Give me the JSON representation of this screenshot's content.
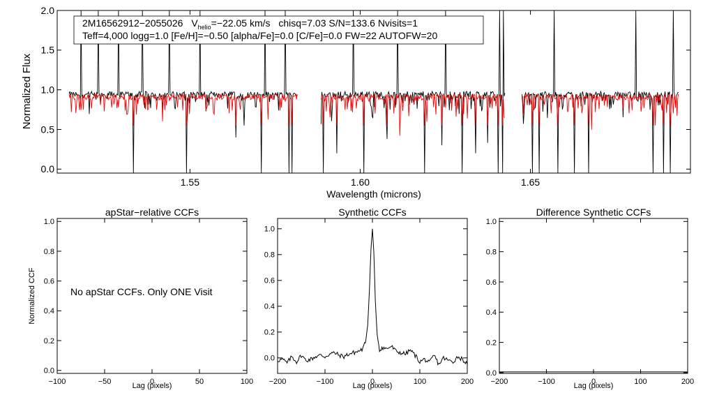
{
  "chart_data": [
    {
      "type": "line",
      "panel": "spectrum",
      "title": "",
      "xlabel": "Wavelength (microns)",
      "ylabel": "Normalized Flux",
      "xlim": [
        1.511,
        1.697
      ],
      "ylim": [
        -0.05,
        2.0
      ],
      "xticks": [
        1.55,
        1.6,
        1.65
      ],
      "xtick_labels": [
        "1.55",
        "1.60",
        "1.65"
      ],
      "yticks": [
        0.0,
        0.5,
        1.0,
        1.5,
        2.0
      ],
      "ytick_labels": [
        "0.0",
        "0.5",
        "1.0",
        "1.5",
        "2.0"
      ],
      "grid": false,
      "legend": {
        "placement": "top-left",
        "line1": {
          "star": "2M16562912−2055026",
          "vhelio_prefix": "V",
          "vhelio_sub": "helio",
          "vhelio_value": "=−22.05 km/s",
          "rest": "chisq=7.03  S/N=133.6  Nvisits=1"
        },
        "line2": "Teff=4,000 logg=1.0 [Fe/H]=−0.50 [alpha/Fe]=0.0 [C/Fe]=0.0 FW=22 AUTOFW=20"
      },
      "segments": [
        [
          1.5145,
          1.5815
        ],
        [
          1.5885,
          1.6425
        ],
        [
          1.6475,
          1.6935
        ]
      ],
      "baseline_observed": 0.94,
      "baseline_model": 0.91,
      "spikes_up": [
        1.518,
        1.523,
        1.529,
        1.536,
        1.544,
        1.553,
        1.572,
        1.578,
        1.598,
        1.611,
        1.625,
        1.641,
        1.642,
        1.657,
        1.681,
        1.692
      ],
      "dips": [
        {
          "x": 1.5335,
          "y": -0.05
        },
        {
          "x": 1.549,
          "y": -0.05
        },
        {
          "x": 1.5635,
          "y": 0.4
        },
        {
          "x": 1.571,
          "y": -0.05
        },
        {
          "x": 1.579,
          "y": -0.05
        },
        {
          "x": 1.58,
          "y": -0.05
        },
        {
          "x": 1.5892,
          "y": -0.05
        },
        {
          "x": 1.5932,
          "y": 0.2
        },
        {
          "x": 1.601,
          "y": -0.05
        },
        {
          "x": 1.608,
          "y": 0.38
        },
        {
          "x": 1.619,
          "y": -0.05
        },
        {
          "x": 1.624,
          "y": 0.3
        },
        {
          "x": 1.63,
          "y": -0.05
        },
        {
          "x": 1.634,
          "y": 0.2
        },
        {
          "x": 1.6375,
          "y": 0.33
        },
        {
          "x": 1.6405,
          "y": -0.05
        },
        {
          "x": 1.6418,
          "y": -0.05
        },
        {
          "x": 1.645,
          "y": 0.63
        },
        {
          "x": 1.6505,
          "y": -0.05
        },
        {
          "x": 1.6525,
          "y": -0.05
        },
        {
          "x": 1.658,
          "y": -0.05
        },
        {
          "x": 1.663,
          "y": -0.05
        },
        {
          "x": 1.667,
          "y": -0.05
        },
        {
          "x": 1.686,
          "y": -0.05
        },
        {
          "x": 1.689,
          "y": -0.05
        },
        {
          "x": 1.691,
          "y": -0.05
        }
      ],
      "colors": {
        "observed": "#000000",
        "model": "#ff0000"
      }
    },
    {
      "type": "line",
      "panel": "apstar",
      "title": "apStar−relative CCFs",
      "xlabel": "Lag (pixels)",
      "ylabel": "Normalized CCF",
      "xlim": [
        -100,
        100
      ],
      "ylim": [
        -0.02,
        1.02
      ],
      "xticks": [
        -100,
        -50,
        0,
        50,
        100
      ],
      "xtick_labels": [
        "−100",
        "−50",
        "0",
        "50",
        "100"
      ],
      "yticks": [
        0.0,
        0.2,
        0.4,
        0.6,
        0.8,
        1.0
      ],
      "ytick_labels": [
        "0.0",
        "0.2",
        "0.4",
        "0.6",
        "0.8",
        "1.0"
      ],
      "annotation": "No apStar CCFs.  Only ONE Visit",
      "series": []
    },
    {
      "type": "line",
      "panel": "synthetic",
      "title": "Synthetic CCFs",
      "xlabel": "Lag (pixels)",
      "ylabel": "",
      "xlim": [
        -200,
        200
      ],
      "ylim": [
        -0.12,
        1.08
      ],
      "xticks": [
        -200,
        -100,
        0,
        100,
        200
      ],
      "xtick_labels": [
        "−200",
        "−100",
        "0",
        "100",
        "200"
      ],
      "yticks": [
        0.0,
        0.2,
        0.4,
        0.6,
        0.8,
        1.0
      ],
      "ytick_labels": [
        "0.0",
        "0.2",
        "0.4",
        "0.6",
        "0.8",
        "1.0"
      ],
      "series": [
        {
          "x": [
            -200,
            -190,
            -180,
            -170,
            -160,
            -150,
            -140,
            -130,
            -120,
            -110,
            -100,
            -90,
            -80,
            -70,
            -60,
            -50,
            -40,
            -30,
            -20,
            -15,
            -10,
            -6,
            -3,
            0,
            3,
            6,
            10,
            15,
            20,
            30,
            40,
            50,
            60,
            70,
            80,
            90,
            100,
            110,
            120,
            130,
            140,
            150,
            160,
            170,
            180,
            190,
            200
          ],
          "y": [
            -0.02,
            -0.01,
            -0.04,
            0.01,
            -0.03,
            0.02,
            -0.02,
            -0.01,
            0.01,
            0.02,
            0.01,
            0.03,
            0.04,
            0.02,
            0.01,
            0.03,
            0.04,
            0.05,
            0.07,
            0.12,
            0.25,
            0.55,
            0.85,
            1.0,
            0.82,
            0.45,
            0.18,
            0.06,
            0.08,
            0.07,
            0.09,
            0.05,
            0.04,
            0.03,
            0.06,
            0.02,
            -0.03,
            -0.01,
            -0.04,
            0.02,
            -0.05,
            0.0,
            -0.02,
            -0.03,
            0.01,
            -0.01,
            -0.05
          ]
        }
      ]
    },
    {
      "type": "line",
      "panel": "difference",
      "title": "Difference Synthetic CCFs",
      "xlabel": "Lag (pixels)",
      "ylabel": "",
      "xlim": [
        -200,
        200
      ],
      "ylim": [
        -0.005,
        1.02
      ],
      "xticks": [
        -200,
        -100,
        0,
        100,
        200
      ],
      "xtick_labels": [
        "−200",
        "−100",
        "0",
        "100",
        "200"
      ],
      "yticks": [
        0.0,
        0.2,
        0.4,
        0.6,
        0.8,
        1.0
      ],
      "ytick_labels": [
        "0.0",
        "0.2",
        "0.4",
        "0.6",
        "0.8",
        "1.0"
      ],
      "series": [
        {
          "x": [
            -200,
            200
          ],
          "y": [
            0.0,
            0.0
          ]
        }
      ]
    }
  ]
}
